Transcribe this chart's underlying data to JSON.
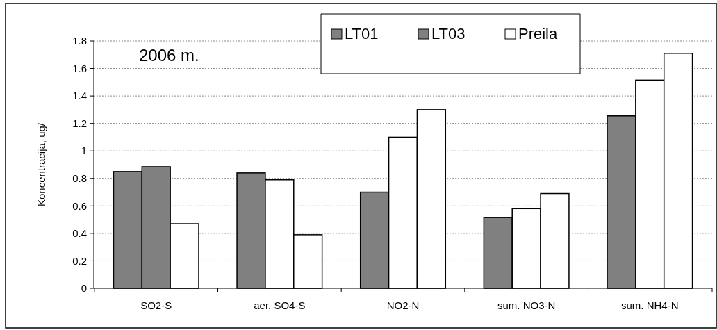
{
  "chart_data": {
    "type": "bar",
    "ylabel": "Koncentracija, ug/",
    "annotations": [
      "2006 m."
    ],
    "categories": [
      "SO2-S",
      "aer. SO4-S",
      "NO2-N",
      "sum. NO3-N",
      "sum. NH4-N"
    ],
    "series": [
      {
        "name": "LT01",
        "color": "#808080",
        "values": [
          0.85,
          0.84,
          0.7,
          0.515,
          1.255
        ]
      },
      {
        "name": "LT03",
        "color": "#808080",
        "colors": [
          "#808080",
          "#ffffff",
          "#ffffff",
          "#ffffff",
          "#ffffff"
        ],
        "values": [
          0.885,
          0.79,
          1.1,
          0.58,
          1.515
        ]
      },
      {
        "name": "Preila",
        "color": "#ffffff",
        "values": [
          0.47,
          0.39,
          1.3,
          0.69,
          1.71
        ]
      }
    ],
    "ylim": [
      0,
      1.8
    ],
    "yticks": [
      0,
      0.2,
      0.4,
      0.6,
      0.8,
      1,
      1.2,
      1.4,
      1.6,
      1.8
    ],
    "grid": "y",
    "legend": "top"
  }
}
